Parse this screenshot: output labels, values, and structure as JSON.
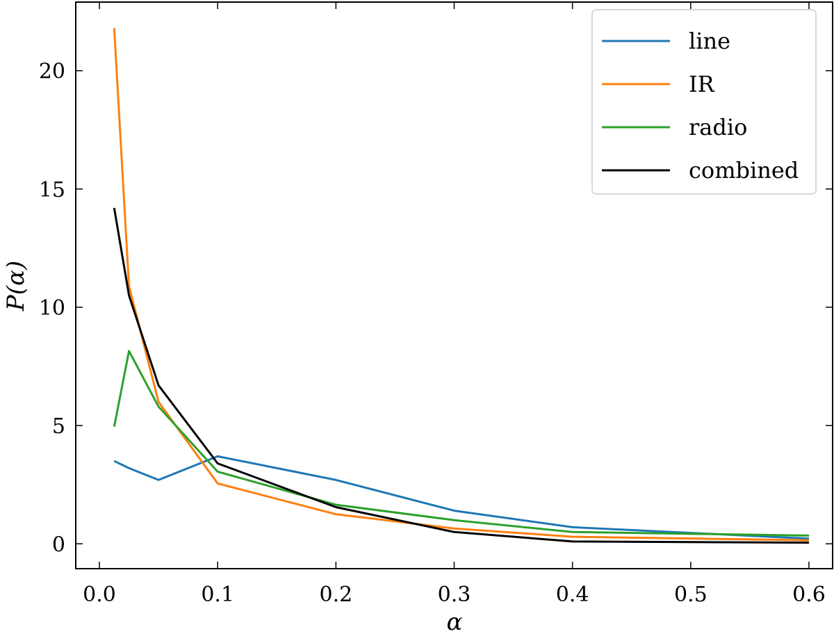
{
  "chart_data": {
    "type": "line",
    "title": "",
    "xlabel": "α",
    "ylabel": "P(α)",
    "xlim": [
      -0.02,
      0.62
    ],
    "ylim": [
      -1.05,
      22.9
    ],
    "xticks": [
      0.0,
      0.1,
      0.2,
      0.3,
      0.4,
      0.5,
      0.6
    ],
    "xtick_labels": [
      "0.0",
      "0.1",
      "0.2",
      "0.3",
      "0.4",
      "0.5",
      "0.6"
    ],
    "yticks": [
      0,
      5,
      10,
      15,
      20
    ],
    "ytick_labels": [
      "0",
      "5",
      "10",
      "15",
      "20"
    ],
    "x": [
      0.0125,
      0.025,
      0.05,
      0.1,
      0.2,
      0.3,
      0.4,
      0.6
    ],
    "series": [
      {
        "name": "line",
        "color": "#1f77b4",
        "values": [
          3.5,
          3.2,
          2.7,
          3.7,
          2.7,
          1.4,
          0.7,
          0.22
        ]
      },
      {
        "name": "IR",
        "color": "#ff7f0e",
        "values": [
          21.8,
          10.9,
          6.0,
          2.55,
          1.25,
          0.65,
          0.3,
          0.15
        ]
      },
      {
        "name": "radio",
        "color": "#2ca02c",
        "values": [
          4.95,
          8.15,
          5.8,
          3.05,
          1.65,
          1.0,
          0.5,
          0.35
        ]
      },
      {
        "name": "combined",
        "color": "#000000",
        "values": [
          14.2,
          10.5,
          6.7,
          3.4,
          1.55,
          0.5,
          0.1,
          0.05
        ]
      }
    ],
    "grid": false,
    "legend_position": "top-right"
  }
}
